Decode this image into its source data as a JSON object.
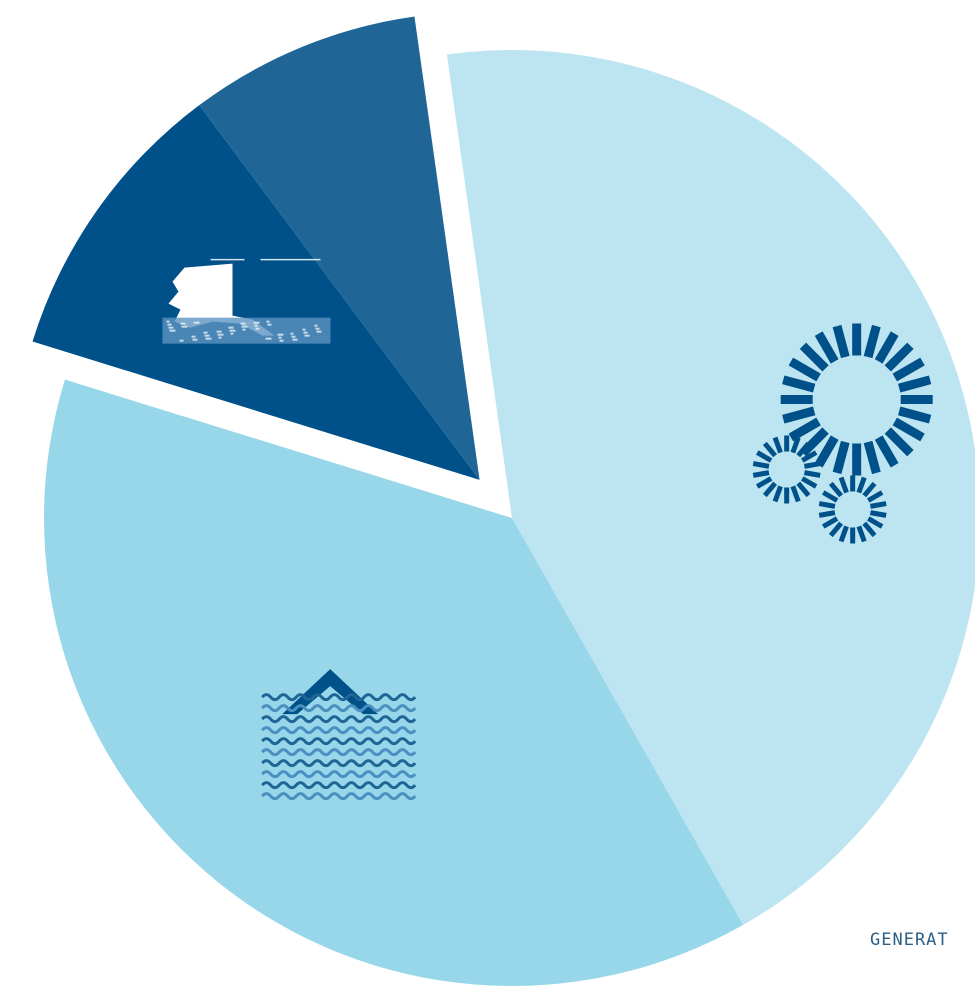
{
  "chart_data": {
    "type": "pie",
    "start_angle_deg": -8,
    "slices": [
      {
        "value": 44,
        "color": "#bde5f1",
        "icon": "gears-icon"
      },
      {
        "value": 38,
        "color": "#97d7e9",
        "icon": "waves-icon"
      },
      {
        "value": 10,
        "color": "#005189",
        "icon": "alaska-map-icon",
        "exploded": true
      },
      {
        "value": 8,
        "color": "#1f6697",
        "exploded": true
      }
    ]
  },
  "footer": {
    "label": "GENERAT"
  }
}
